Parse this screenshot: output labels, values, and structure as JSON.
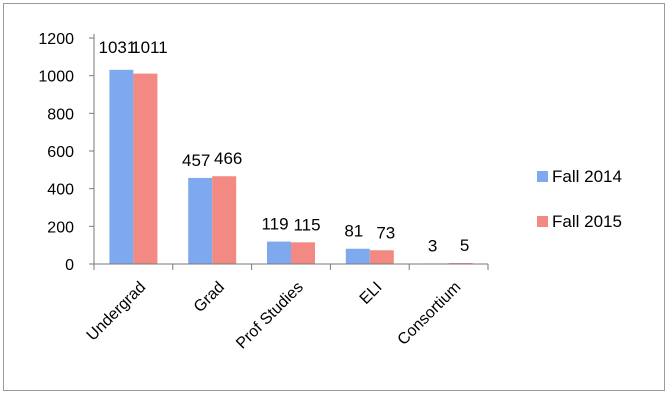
{
  "chart_data": {
    "type": "bar",
    "categories": [
      "Undergrad",
      "Grad",
      "Prof Studies",
      "ELI",
      "Consortium"
    ],
    "series": [
      {
        "name": "Fall 2014",
        "values": [
          1031,
          457,
          119,
          81,
          3
        ],
        "color": "#7fa9ef"
      },
      {
        "name": "Fall 2015",
        "values": [
          1011,
          466,
          115,
          73,
          5
        ],
        "color": "#f28a83"
      }
    ],
    "ylim": [
      0,
      1200
    ],
    "yticks": [
      0,
      200,
      400,
      600,
      800,
      1000,
      1200
    ],
    "data_labels": true,
    "grid": false,
    "legend_position": "right",
    "title": "",
    "xlabel": "",
    "ylabel": ""
  }
}
